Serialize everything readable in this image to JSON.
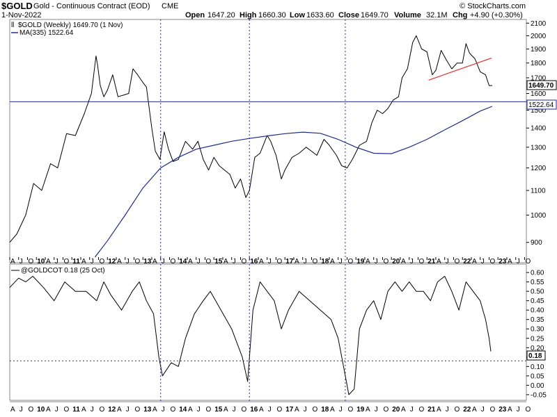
{
  "header": {
    "symbol": "$GOLD",
    "description": "Gold - Continuous Contract (EOD)",
    "exchange": "CME",
    "date": "1-Nov-2022",
    "open_label": "Open",
    "open": "1647.20",
    "high_label": "High",
    "high": "1660.30",
    "low_label": "Low",
    "low": "1633.60",
    "close_label": "Close",
    "close": "1649.70",
    "volume_label": "Volume",
    "volume": "32.1M",
    "chg_label": "Chg",
    "chg": "+4.90 (+0.30%)",
    "credit": "© StockCharts.com"
  },
  "legend": {
    "price": "$GOLD (Weekly) 1649.70 (1 Nov)",
    "ma": "MA(335) 1522.64",
    "indicator": "@GOLDCOT 0.18 (25 Oct)"
  },
  "colors": {
    "price_line": "#000000",
    "ma_line": "#1f2a8c",
    "hline": "#1f2a8c",
    "trendline": "#e04040",
    "grid_dotted": "#2a2aa0",
    "axis_border": "#888888"
  },
  "markers": {
    "price_last": "1649.70",
    "ma_last": "1522.64",
    "cot_last": "0.18"
  },
  "chart_data": [
    {
      "type": "line",
      "title": "$GOLD (Weekly)",
      "ylim": [
        850,
        2130
      ],
      "y_scale": "log",
      "y_ticks": [
        900,
        1000,
        1100,
        1200,
        1300,
        1400,
        1500,
        1600,
        1700,
        1800,
        1900,
        2000,
        2100
      ],
      "x_range": [
        2009.25,
        2023.8
      ],
      "series": [
        {
          "name": "$GOLD (Weekly)",
          "x": [
            2009.25,
            2009.45,
            2009.7,
            2009.92,
            2010.15,
            2010.4,
            2010.6,
            2010.85,
            2011.1,
            2011.35,
            2011.55,
            2011.68,
            2011.72,
            2011.8,
            2011.9,
            2012.0,
            2012.15,
            2012.3,
            2012.45,
            2012.6,
            2012.72,
            2012.85,
            2013.0,
            2013.1,
            2013.25,
            2013.35,
            2013.48,
            2013.6,
            2013.72,
            2013.85,
            2014.0,
            2014.2,
            2014.4,
            2014.55,
            2014.7,
            2014.85,
            2015.0,
            2015.15,
            2015.3,
            2015.45,
            2015.6,
            2015.75,
            2015.9,
            2016.0,
            2016.15,
            2016.3,
            2016.5,
            2016.6,
            2016.75,
            2016.9,
            2017.0,
            2017.2,
            2017.4,
            2017.6,
            2017.75,
            2017.9,
            2018.1,
            2018.25,
            2018.45,
            2018.6,
            2018.75,
            2018.9,
            2019.1,
            2019.3,
            2019.45,
            2019.6,
            2019.75,
            2019.9,
            2020.05,
            2020.2,
            2020.3,
            2020.45,
            2020.6,
            2020.7,
            2020.85,
            2021.0,
            2021.15,
            2021.25,
            2021.4,
            2021.55,
            2021.7,
            2021.85,
            2022.0,
            2022.1,
            2022.2,
            2022.35,
            2022.5,
            2022.65,
            2022.75,
            2022.84
          ],
          "y": [
            900,
            930,
            1000,
            1130,
            1100,
            1220,
            1200,
            1370,
            1360,
            1480,
            1600,
            1850,
            1790,
            1650,
            1580,
            1620,
            1720,
            1580,
            1590,
            1600,
            1760,
            1720,
            1670,
            1640,
            1400,
            1280,
            1240,
            1380,
            1290,
            1230,
            1240,
            1330,
            1290,
            1330,
            1240,
            1190,
            1250,
            1210,
            1190,
            1170,
            1110,
            1150,
            1070,
            1100,
            1250,
            1270,
            1360,
            1330,
            1260,
            1150,
            1190,
            1250,
            1270,
            1300,
            1280,
            1260,
            1340,
            1310,
            1260,
            1210,
            1200,
            1240,
            1310,
            1330,
            1430,
            1500,
            1480,
            1510,
            1560,
            1580,
            1700,
            1760,
            1950,
            2000,
            1900,
            1880,
            1720,
            1750,
            1890,
            1820,
            1760,
            1800,
            1800,
            1940,
            1870,
            1830,
            1740,
            1720,
            1650,
            1650
          ]
        },
        {
          "name": "MA(335)",
          "x": [
            2011.65,
            2012.0,
            2012.5,
            2013.0,
            2013.5,
            2014.0,
            2014.5,
            2015.0,
            2015.5,
            2016.0,
            2016.5,
            2017.0,
            2017.5,
            2018.0,
            2018.5,
            2019.0,
            2019.5,
            2020.0,
            2020.5,
            2021.0,
            2021.5,
            2022.0,
            2022.5,
            2022.84
          ],
          "y": [
            850,
            905,
            1000,
            1110,
            1200,
            1250,
            1290,
            1310,
            1330,
            1345,
            1358,
            1370,
            1378,
            1372,
            1340,
            1300,
            1270,
            1268,
            1300,
            1340,
            1390,
            1440,
            1495,
            1522.64
          ]
        }
      ],
      "hline": 1550,
      "trendline": {
        "x": [
          2021.05,
          2022.82
        ],
        "y": [
          1685,
          1835
        ]
      },
      "xlabels": [
        {
          "x": 2009.25,
          "label": "A"
        },
        {
          "x": 2009.5,
          "label": "J"
        },
        {
          "x": 2009.75,
          "label": "O"
        },
        {
          "x": 2010.0,
          "label": "10"
        },
        {
          "x": 2010.25,
          "label": "A"
        },
        {
          "x": 2010.5,
          "label": "J"
        },
        {
          "x": 2010.75,
          "label": "O"
        },
        {
          "x": 2011.0,
          "label": "11"
        },
        {
          "x": 2011.25,
          "label": "A"
        },
        {
          "x": 2011.5,
          "label": "J"
        },
        {
          "x": 2011.75,
          "label": "O"
        },
        {
          "x": 2012.0,
          "label": "12"
        },
        {
          "x": 2012.25,
          "label": "A"
        },
        {
          "x": 2012.5,
          "label": "J"
        },
        {
          "x": 2012.75,
          "label": "O"
        },
        {
          "x": 2013.0,
          "label": "13"
        },
        {
          "x": 2013.25,
          "label": "A"
        },
        {
          "x": 2013.5,
          "label": "J"
        },
        {
          "x": 2013.75,
          "label": "O"
        },
        {
          "x": 2014.0,
          "label": "14"
        },
        {
          "x": 2014.25,
          "label": "A"
        },
        {
          "x": 2014.5,
          "label": "J"
        },
        {
          "x": 2014.75,
          "label": "O"
        },
        {
          "x": 2015.0,
          "label": "15"
        },
        {
          "x": 2015.25,
          "label": "A"
        },
        {
          "x": 2015.5,
          "label": "J"
        },
        {
          "x": 2015.75,
          "label": "O"
        },
        {
          "x": 2016.0,
          "label": "16"
        },
        {
          "x": 2016.25,
          "label": "A"
        },
        {
          "x": 2016.5,
          "label": "J"
        },
        {
          "x": 2016.75,
          "label": "O"
        },
        {
          "x": 2017.0,
          "label": "17"
        },
        {
          "x": 2017.25,
          "label": "A"
        },
        {
          "x": 2017.5,
          "label": "J"
        },
        {
          "x": 2017.75,
          "label": "O"
        },
        {
          "x": 2018.0,
          "label": "18"
        },
        {
          "x": 2018.25,
          "label": "A"
        },
        {
          "x": 2018.5,
          "label": "J"
        },
        {
          "x": 2018.75,
          "label": "O"
        },
        {
          "x": 2019.0,
          "label": "19"
        },
        {
          "x": 2019.25,
          "label": "A"
        },
        {
          "x": 2019.5,
          "label": "J"
        },
        {
          "x": 2019.75,
          "label": "O"
        },
        {
          "x": 2020.0,
          "label": "20"
        },
        {
          "x": 2020.25,
          "label": "A"
        },
        {
          "x": 2020.5,
          "label": "J"
        },
        {
          "x": 2020.75,
          "label": "O"
        },
        {
          "x": 2021.0,
          "label": "21"
        },
        {
          "x": 2021.25,
          "label": "A"
        },
        {
          "x": 2021.5,
          "label": "J"
        },
        {
          "x": 2021.75,
          "label": "O"
        },
        {
          "x": 2022.0,
          "label": "22"
        },
        {
          "x": 2022.25,
          "label": "A"
        },
        {
          "x": 2022.5,
          "label": "J"
        },
        {
          "x": 2022.75,
          "label": "O"
        },
        {
          "x": 2023.0,
          "label": "23"
        },
        {
          "x": 2023.25,
          "label": "A"
        },
        {
          "x": 2023.5,
          "label": "J"
        },
        {
          "x": 2023.75,
          "label": "O"
        }
      ],
      "vlines": [
        2013.5,
        2016.0,
        2018.7
      ]
    },
    {
      "type": "line",
      "title": "@GOLDCOT",
      "ylim": [
        -0.08,
        0.63
      ],
      "y_ticks": [
        -0.05,
        0.0,
        0.05,
        0.1,
        0.15,
        0.2,
        0.25,
        0.3,
        0.35,
        0.4,
        0.45,
        0.5,
        0.55,
        0.6
      ],
      "x_range": [
        2009.25,
        2023.8
      ],
      "series": [
        {
          "name": "@GOLDCOT",
          "x": [
            2009.25,
            2009.5,
            2009.7,
            2009.9,
            2010.2,
            2010.5,
            2010.8,
            2011.1,
            2011.4,
            2011.7,
            2011.9,
            2012.1,
            2012.4,
            2012.7,
            2012.9,
            2013.1,
            2013.3,
            2013.45,
            2013.55,
            2013.8,
            2014.0,
            2014.2,
            2014.45,
            2014.7,
            2014.9,
            2015.2,
            2015.5,
            2015.8,
            2015.95,
            2016.1,
            2016.3,
            2016.5,
            2016.7,
            2016.9,
            2017.1,
            2017.4,
            2017.7,
            2018.0,
            2018.3,
            2018.5,
            2018.65,
            2018.8,
            2018.95,
            2019.1,
            2019.3,
            2019.5,
            2019.7,
            2019.9,
            2020.1,
            2020.3,
            2020.5,
            2020.7,
            2020.9,
            2021.1,
            2021.3,
            2021.5,
            2021.7,
            2021.9,
            2022.1,
            2022.3,
            2022.5,
            2022.65,
            2022.75,
            2022.8
          ],
          "y": [
            0.52,
            0.57,
            0.55,
            0.58,
            0.52,
            0.45,
            0.55,
            0.5,
            0.5,
            0.45,
            0.55,
            0.48,
            0.4,
            0.5,
            0.55,
            0.45,
            0.38,
            0.15,
            0.05,
            0.12,
            0.1,
            0.25,
            0.38,
            0.45,
            0.5,
            0.4,
            0.3,
            0.15,
            0.02,
            0.4,
            0.55,
            0.5,
            0.45,
            0.3,
            0.4,
            0.5,
            0.45,
            0.4,
            0.35,
            0.25,
            0.1,
            -0.05,
            -0.02,
            0.3,
            0.4,
            0.45,
            0.35,
            0.5,
            0.55,
            0.5,
            0.55,
            0.5,
            0.5,
            0.45,
            0.55,
            0.58,
            0.5,
            0.4,
            0.55,
            0.5,
            0.45,
            0.35,
            0.25,
            0.18
          ]
        }
      ],
      "hline": 0.13,
      "xlabels_ref": "same as top panel",
      "vlines": [
        2013.5,
        2016.0,
        2018.7
      ]
    }
  ]
}
